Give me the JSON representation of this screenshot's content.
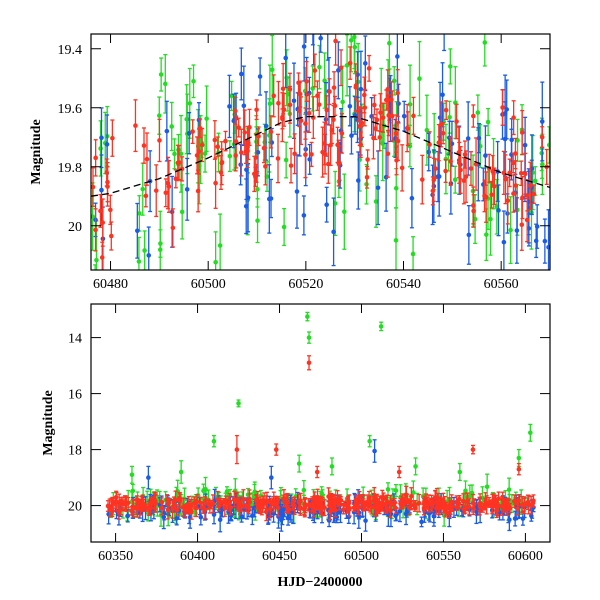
{
  "colors": {
    "green": "#22dd22",
    "blue": "#1a5ce6",
    "red": "#ff3322"
  },
  "chart_data": [
    {
      "type": "scatter",
      "panel": "top",
      "title": "",
      "xlabel": "",
      "ylabel": "Magnitude",
      "xlim": [
        60476,
        60570
      ],
      "ylim": [
        20.15,
        19.35
      ],
      "y_inverted": true,
      "xticks": [
        60480,
        60500,
        60520,
        60540,
        60560
      ],
      "yticks": [
        19.4,
        19.6,
        19.8,
        20
      ],
      "ytick_labels": [
        "19.4",
        "19.6",
        "19.8",
        "20"
      ],
      "model_curve": {
        "x": [
          60476,
          60480,
          60490,
          60500,
          60510,
          60515,
          60520,
          60530,
          60540,
          60550,
          60560,
          60570
        ],
        "y": [
          19.9,
          19.89,
          19.84,
          19.77,
          19.69,
          19.65,
          19.63,
          19.63,
          19.68,
          19.75,
          19.82,
          19.87
        ]
      },
      "series": [
        {
          "color": "green",
          "x_range": [
            60476,
            60570
          ],
          "level": 19.72,
          "spread": 0.35,
          "err": 0.09,
          "count": 120,
          "gap": [
            60481,
            60485
          ]
        },
        {
          "color": "blue",
          "x_range": [
            60476,
            60570
          ],
          "level": 19.75,
          "spread": 0.35,
          "err": 0.09,
          "count": 120,
          "gap": [
            60481,
            60485
          ]
        },
        {
          "color": "red",
          "x_range": [
            60476,
            60570
          ],
          "level": 19.73,
          "spread": 0.18,
          "err": 0.06,
          "count": 190,
          "gap": [
            60481,
            60485
          ]
        }
      ],
      "outliers": []
    },
    {
      "type": "scatter",
      "panel": "bottom",
      "title": "",
      "xlabel": "HJD−2400000",
      "ylabel": "Magnitude",
      "xlim": [
        60335,
        60615
      ],
      "ylim": [
        21.3,
        12.8
      ],
      "y_inverted": true,
      "xticks": [
        60350,
        60400,
        60450,
        60500,
        60550,
        60600
      ],
      "yticks": [
        14,
        16,
        18,
        20
      ],
      "ytick_labels": [
        "14",
        "16",
        "18",
        "20"
      ],
      "model_curve": null,
      "series": [
        {
          "color": "green",
          "x_range": [
            60345,
            60605
          ],
          "level": 19.85,
          "spread": 0.45,
          "err": 0.3,
          "count": 150,
          "gap": null
        },
        {
          "color": "blue",
          "x_range": [
            60345,
            60605
          ],
          "level": 20.15,
          "spread": 0.35,
          "err": 0.3,
          "count": 180,
          "gap": null
        },
        {
          "color": "red",
          "x_range": [
            60345,
            60605
          ],
          "level": 19.95,
          "spread": 0.25,
          "err": 0.22,
          "count": 320,
          "gap": null
        }
      ],
      "outliers": [
        {
          "x": 60467,
          "y": 13.25,
          "err": 0.15,
          "color": "green"
        },
        {
          "x": 60468,
          "y": 14.0,
          "err": 0.2,
          "color": "green"
        },
        {
          "x": 60468,
          "y": 14.9,
          "err": 0.25,
          "color": "red"
        },
        {
          "x": 60512,
          "y": 13.6,
          "err": 0.15,
          "color": "green"
        },
        {
          "x": 60425,
          "y": 16.35,
          "err": 0.12,
          "color": "green"
        },
        {
          "x": 60410,
          "y": 17.7,
          "err": 0.2,
          "color": "green"
        },
        {
          "x": 60424,
          "y": 18.0,
          "err": 0.5,
          "color": "red"
        },
        {
          "x": 60448,
          "y": 18.0,
          "err": 0.2,
          "color": "red"
        },
        {
          "x": 60505,
          "y": 17.7,
          "err": 0.2,
          "color": "green"
        },
        {
          "x": 60508,
          "y": 18.05,
          "err": 0.4,
          "color": "blue"
        },
        {
          "x": 60462,
          "y": 18.5,
          "err": 0.3,
          "color": "green"
        },
        {
          "x": 60482,
          "y": 18.6,
          "err": 0.3,
          "color": "green"
        },
        {
          "x": 60473,
          "y": 18.8,
          "err": 0.2,
          "color": "red"
        },
        {
          "x": 60568,
          "y": 18.0,
          "err": 0.15,
          "color": "red"
        },
        {
          "x": 60603,
          "y": 17.4,
          "err": 0.3,
          "color": "green"
        },
        {
          "x": 60596,
          "y": 18.3,
          "err": 0.3,
          "color": "green"
        },
        {
          "x": 60390,
          "y": 18.8,
          "err": 0.4,
          "color": "green"
        },
        {
          "x": 60533,
          "y": 18.6,
          "err": 0.3,
          "color": "green"
        },
        {
          "x": 60560,
          "y": 18.8,
          "err": 0.3,
          "color": "green"
        },
        {
          "x": 60360,
          "y": 18.9,
          "err": 0.3,
          "color": "green"
        },
        {
          "x": 60523,
          "y": 18.8,
          "err": 0.2,
          "color": "red"
        },
        {
          "x": 60596,
          "y": 18.7,
          "err": 0.2,
          "color": "red"
        },
        {
          "x": 60370,
          "y": 19.0,
          "err": 0.4,
          "color": "blue"
        },
        {
          "x": 60445,
          "y": 19.0,
          "err": 0.4,
          "color": "blue"
        }
      ]
    }
  ]
}
